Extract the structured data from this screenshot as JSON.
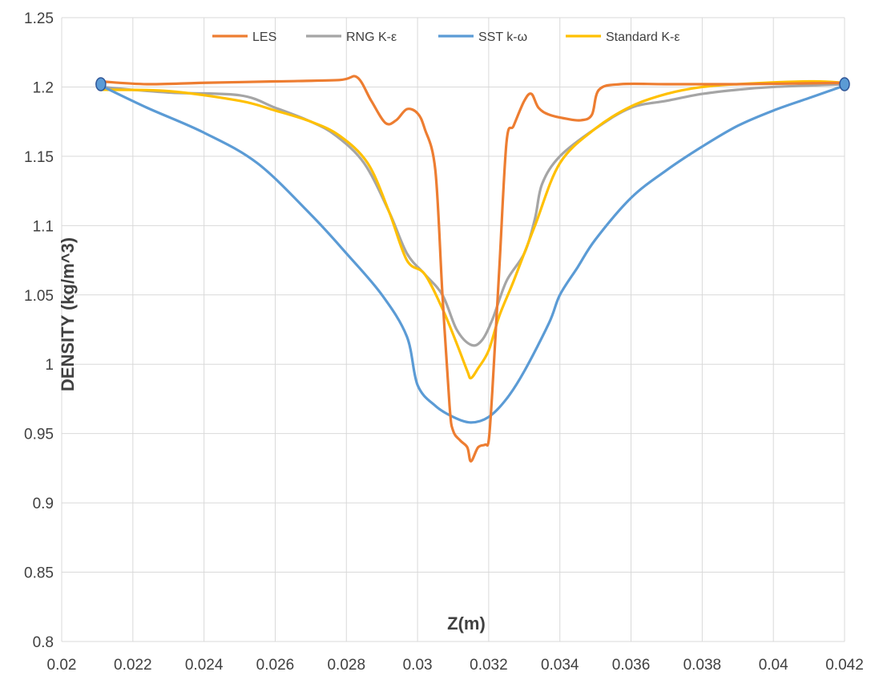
{
  "chart_data": {
    "type": "line",
    "title": "",
    "xlabel": "Z(m)",
    "ylabel": "DENSITY (kg/m^3)",
    "xlim": [
      0.02,
      0.042
    ],
    "ylim": [
      0.8,
      1.25
    ],
    "x_ticks": [
      0.02,
      0.022,
      0.024,
      0.026,
      0.028,
      0.03,
      0.032,
      0.034,
      0.036,
      0.038,
      0.04,
      0.042
    ],
    "x_tick_labels": [
      "0.02",
      "0.022",
      "0.024",
      "0.026",
      "0.028",
      "0.03",
      "0.032",
      "0.034",
      "0.036",
      "0.038",
      "0.04",
      "0.042"
    ],
    "y_ticks": [
      0.8,
      0.85,
      0.9,
      0.95,
      1.0,
      1.05,
      1.1,
      1.15,
      1.2,
      1.25
    ],
    "y_tick_labels": [
      "0.8",
      "0.85",
      "0.9",
      "0.95",
      "1",
      "1.05",
      "1.1",
      "1.15",
      "1.2",
      "1.25"
    ],
    "grid": true,
    "legend_position": "top",
    "series": [
      {
        "name": "LES",
        "color": "#ed7d31",
        "points": [
          [
            0.0211,
            1.204
          ],
          [
            0.0224,
            1.202
          ],
          [
            0.024,
            1.203
          ],
          [
            0.026,
            1.204
          ],
          [
            0.0278,
            1.205
          ],
          [
            0.0283,
            1.207
          ],
          [
            0.0287,
            1.19
          ],
          [
            0.0291,
            1.174
          ],
          [
            0.0294,
            1.176
          ],
          [
            0.0297,
            1.184
          ],
          [
            0.03,
            1.181
          ],
          [
            0.0302,
            1.17
          ],
          [
            0.0305,
            1.14
          ],
          [
            0.0307,
            1.05
          ],
          [
            0.0309,
            0.97
          ],
          [
            0.031,
            0.952
          ],
          [
            0.0312,
            0.945
          ],
          [
            0.0314,
            0.94
          ],
          [
            0.0315,
            0.93
          ],
          [
            0.0317,
            0.94
          ],
          [
            0.0319,
            0.942
          ],
          [
            0.032,
            0.945
          ],
          [
            0.0321,
            0.98
          ],
          [
            0.0323,
            1.07
          ],
          [
            0.0325,
            1.16
          ],
          [
            0.0327,
            1.172
          ],
          [
            0.033,
            1.19
          ],
          [
            0.0332,
            1.195
          ],
          [
            0.0334,
            1.185
          ],
          [
            0.0337,
            1.18
          ],
          [
            0.0342,
            1.177
          ],
          [
            0.0346,
            1.176
          ],
          [
            0.0349,
            1.18
          ],
          [
            0.0351,
            1.198
          ],
          [
            0.0357,
            1.202
          ],
          [
            0.037,
            1.202
          ],
          [
            0.039,
            1.202
          ],
          [
            0.042,
            1.203
          ]
        ]
      },
      {
        "name": "RNG K-ε",
        "color": "#a5a5a5",
        "points": [
          [
            0.0211,
            1.2
          ],
          [
            0.023,
            1.196
          ],
          [
            0.025,
            1.194
          ],
          [
            0.026,
            1.185
          ],
          [
            0.027,
            1.175
          ],
          [
            0.0277,
            1.165
          ],
          [
            0.0285,
            1.145
          ],
          [
            0.0292,
            1.11
          ],
          [
            0.0297,
            1.08
          ],
          [
            0.0302,
            1.065
          ],
          [
            0.0307,
            1.05
          ],
          [
            0.0311,
            1.025
          ],
          [
            0.0315,
            1.014
          ],
          [
            0.0318,
            1.017
          ],
          [
            0.0321,
            1.032
          ],
          [
            0.0325,
            1.06
          ],
          [
            0.033,
            1.08
          ],
          [
            0.0333,
            1.105
          ],
          [
            0.0335,
            1.13
          ],
          [
            0.034,
            1.15
          ],
          [
            0.035,
            1.17
          ],
          [
            0.036,
            1.185
          ],
          [
            0.037,
            1.19
          ],
          [
            0.038,
            1.195
          ],
          [
            0.039,
            1.198
          ],
          [
            0.04,
            1.2
          ],
          [
            0.042,
            1.202
          ]
        ]
      },
      {
        "name": "SST k-ω",
        "color": "#5b9bd5",
        "points": [
          [
            0.0211,
            1.201
          ],
          [
            0.0224,
            1.185
          ],
          [
            0.024,
            1.167
          ],
          [
            0.0255,
            1.145
          ],
          [
            0.027,
            1.108
          ],
          [
            0.028,
            1.08
          ],
          [
            0.029,
            1.05
          ],
          [
            0.0297,
            1.02
          ],
          [
            0.03,
            0.985
          ],
          [
            0.0305,
            0.97
          ],
          [
            0.031,
            0.962
          ],
          [
            0.0315,
            0.958
          ],
          [
            0.032,
            0.962
          ],
          [
            0.0325,
            0.975
          ],
          [
            0.033,
            0.995
          ],
          [
            0.0337,
            1.03
          ],
          [
            0.034,
            1.05
          ],
          [
            0.0345,
            1.07
          ],
          [
            0.035,
            1.09
          ],
          [
            0.036,
            1.12
          ],
          [
            0.037,
            1.14
          ],
          [
            0.038,
            1.157
          ],
          [
            0.039,
            1.172
          ],
          [
            0.04,
            1.183
          ],
          [
            0.041,
            1.192
          ],
          [
            0.042,
            1.201
          ]
        ]
      },
      {
        "name": "Standard K-ε",
        "color": "#ffc000",
        "points": [
          [
            0.0211,
            1.198
          ],
          [
            0.023,
            1.197
          ],
          [
            0.025,
            1.19
          ],
          [
            0.026,
            1.183
          ],
          [
            0.027,
            1.175
          ],
          [
            0.0278,
            1.165
          ],
          [
            0.0286,
            1.145
          ],
          [
            0.0292,
            1.11
          ],
          [
            0.0297,
            1.075
          ],
          [
            0.0302,
            1.065
          ],
          [
            0.0307,
            1.04
          ],
          [
            0.0311,
            1.015
          ],
          [
            0.0314,
            0.995
          ],
          [
            0.0315,
            0.99
          ],
          [
            0.0317,
            0.997
          ],
          [
            0.032,
            1.01
          ],
          [
            0.0323,
            1.035
          ],
          [
            0.0327,
            1.06
          ],
          [
            0.0333,
            1.1
          ],
          [
            0.034,
            1.145
          ],
          [
            0.035,
            1.17
          ],
          [
            0.036,
            1.186
          ],
          [
            0.037,
            1.195
          ],
          [
            0.038,
            1.2
          ],
          [
            0.039,
            1.202
          ],
          [
            0.041,
            1.204
          ],
          [
            0.042,
            1.203
          ]
        ]
      }
    ],
    "endpoint_markers": [
      {
        "x": 0.0211,
        "y": 1.202
      },
      {
        "x": 0.042,
        "y": 1.202
      }
    ]
  }
}
